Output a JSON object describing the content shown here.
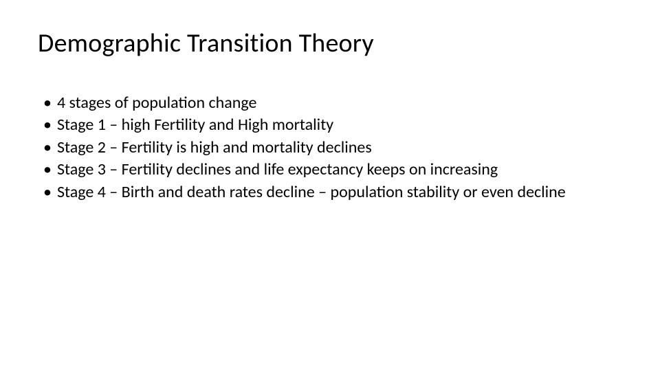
{
  "slide": {
    "title": "Demographic Transition Theory",
    "title_fontsize": 38,
    "title_color": "#000000",
    "background_color": "#ffffff",
    "body_fontsize": 24,
    "body_color": "#000000",
    "bullet_char": "•",
    "bullets": [
      "4 stages of population change",
      "Stage 1 – high Fertility and High mortality",
      "Stage 2 – Fertility is high and mortality declines",
      "Stage 3 – Fertility declines and life expectancy keeps on increasing",
      "Stage 4 – Birth and death rates decline – population stability or even decline"
    ]
  }
}
